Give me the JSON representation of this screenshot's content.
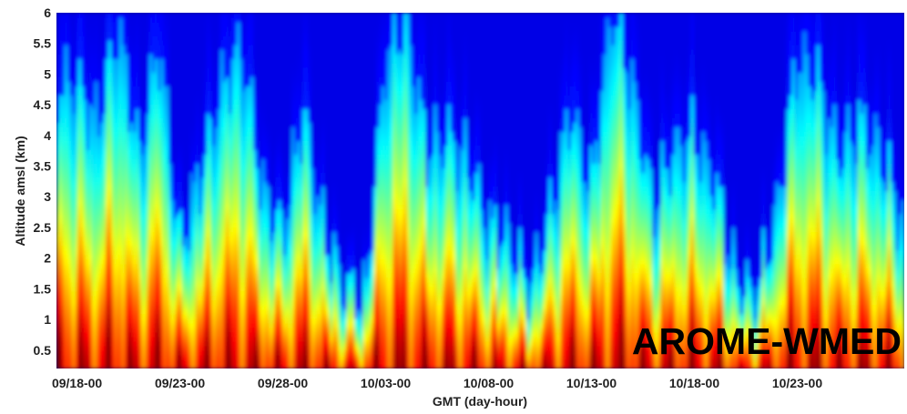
{
  "chart_data": {
    "type": "heatmap",
    "title": "",
    "xlabel": "GMT (day-hour)",
    "ylabel": "Altitude amsl (km)",
    "annotation": "AROME-WMED",
    "x_tick_labels": [
      "09/18-00",
      "09/23-00",
      "09/28-00",
      "10/03-00",
      "10/08-00",
      "10/13-00",
      "10/18-00",
      "10/23-00"
    ],
    "y_tick_labels": [
      "0.5",
      "1",
      "1.5",
      "2",
      "2.5",
      "3",
      "3.5",
      "4",
      "4.5",
      "5",
      "5.5",
      "6"
    ],
    "y_ticks": [
      0.5,
      1,
      1.5,
      2,
      2.5,
      3,
      3.5,
      4,
      4.5,
      5,
      5.5,
      6
    ],
    "ylim": [
      0.2,
      6
    ],
    "x_range_days": [
      -1,
      40.2
    ],
    "colormap": "jet",
    "colorbar_shown": false,
    "colors": {
      "low": "#00008f",
      "mid": "#00ffff",
      "high": "#ffff00",
      "max": "#ff0000",
      "annotation_text": "#000000"
    },
    "vertical_profile_top_km_by_day": [
      4.6,
      4.0,
      5.5,
      3.5,
      5.2,
      2.1,
      3.2,
      4.5,
      5.2,
      3.0,
      2.3,
      4.2,
      2.3,
      1.5,
      1.2,
      5.0,
      5.6,
      3.6,
      3.8,
      3.4,
      2.4,
      2.2,
      1.4,
      2.6,
      4.2,
      3.0,
      5.8,
      4.6,
      2.7,
      3.6,
      3.8,
      3.1,
      1.6,
      1.3,
      2.6,
      5.0,
      4.7,
      3.5,
      4.0,
      3.6,
      2.6,
      2.9
    ]
  }
}
